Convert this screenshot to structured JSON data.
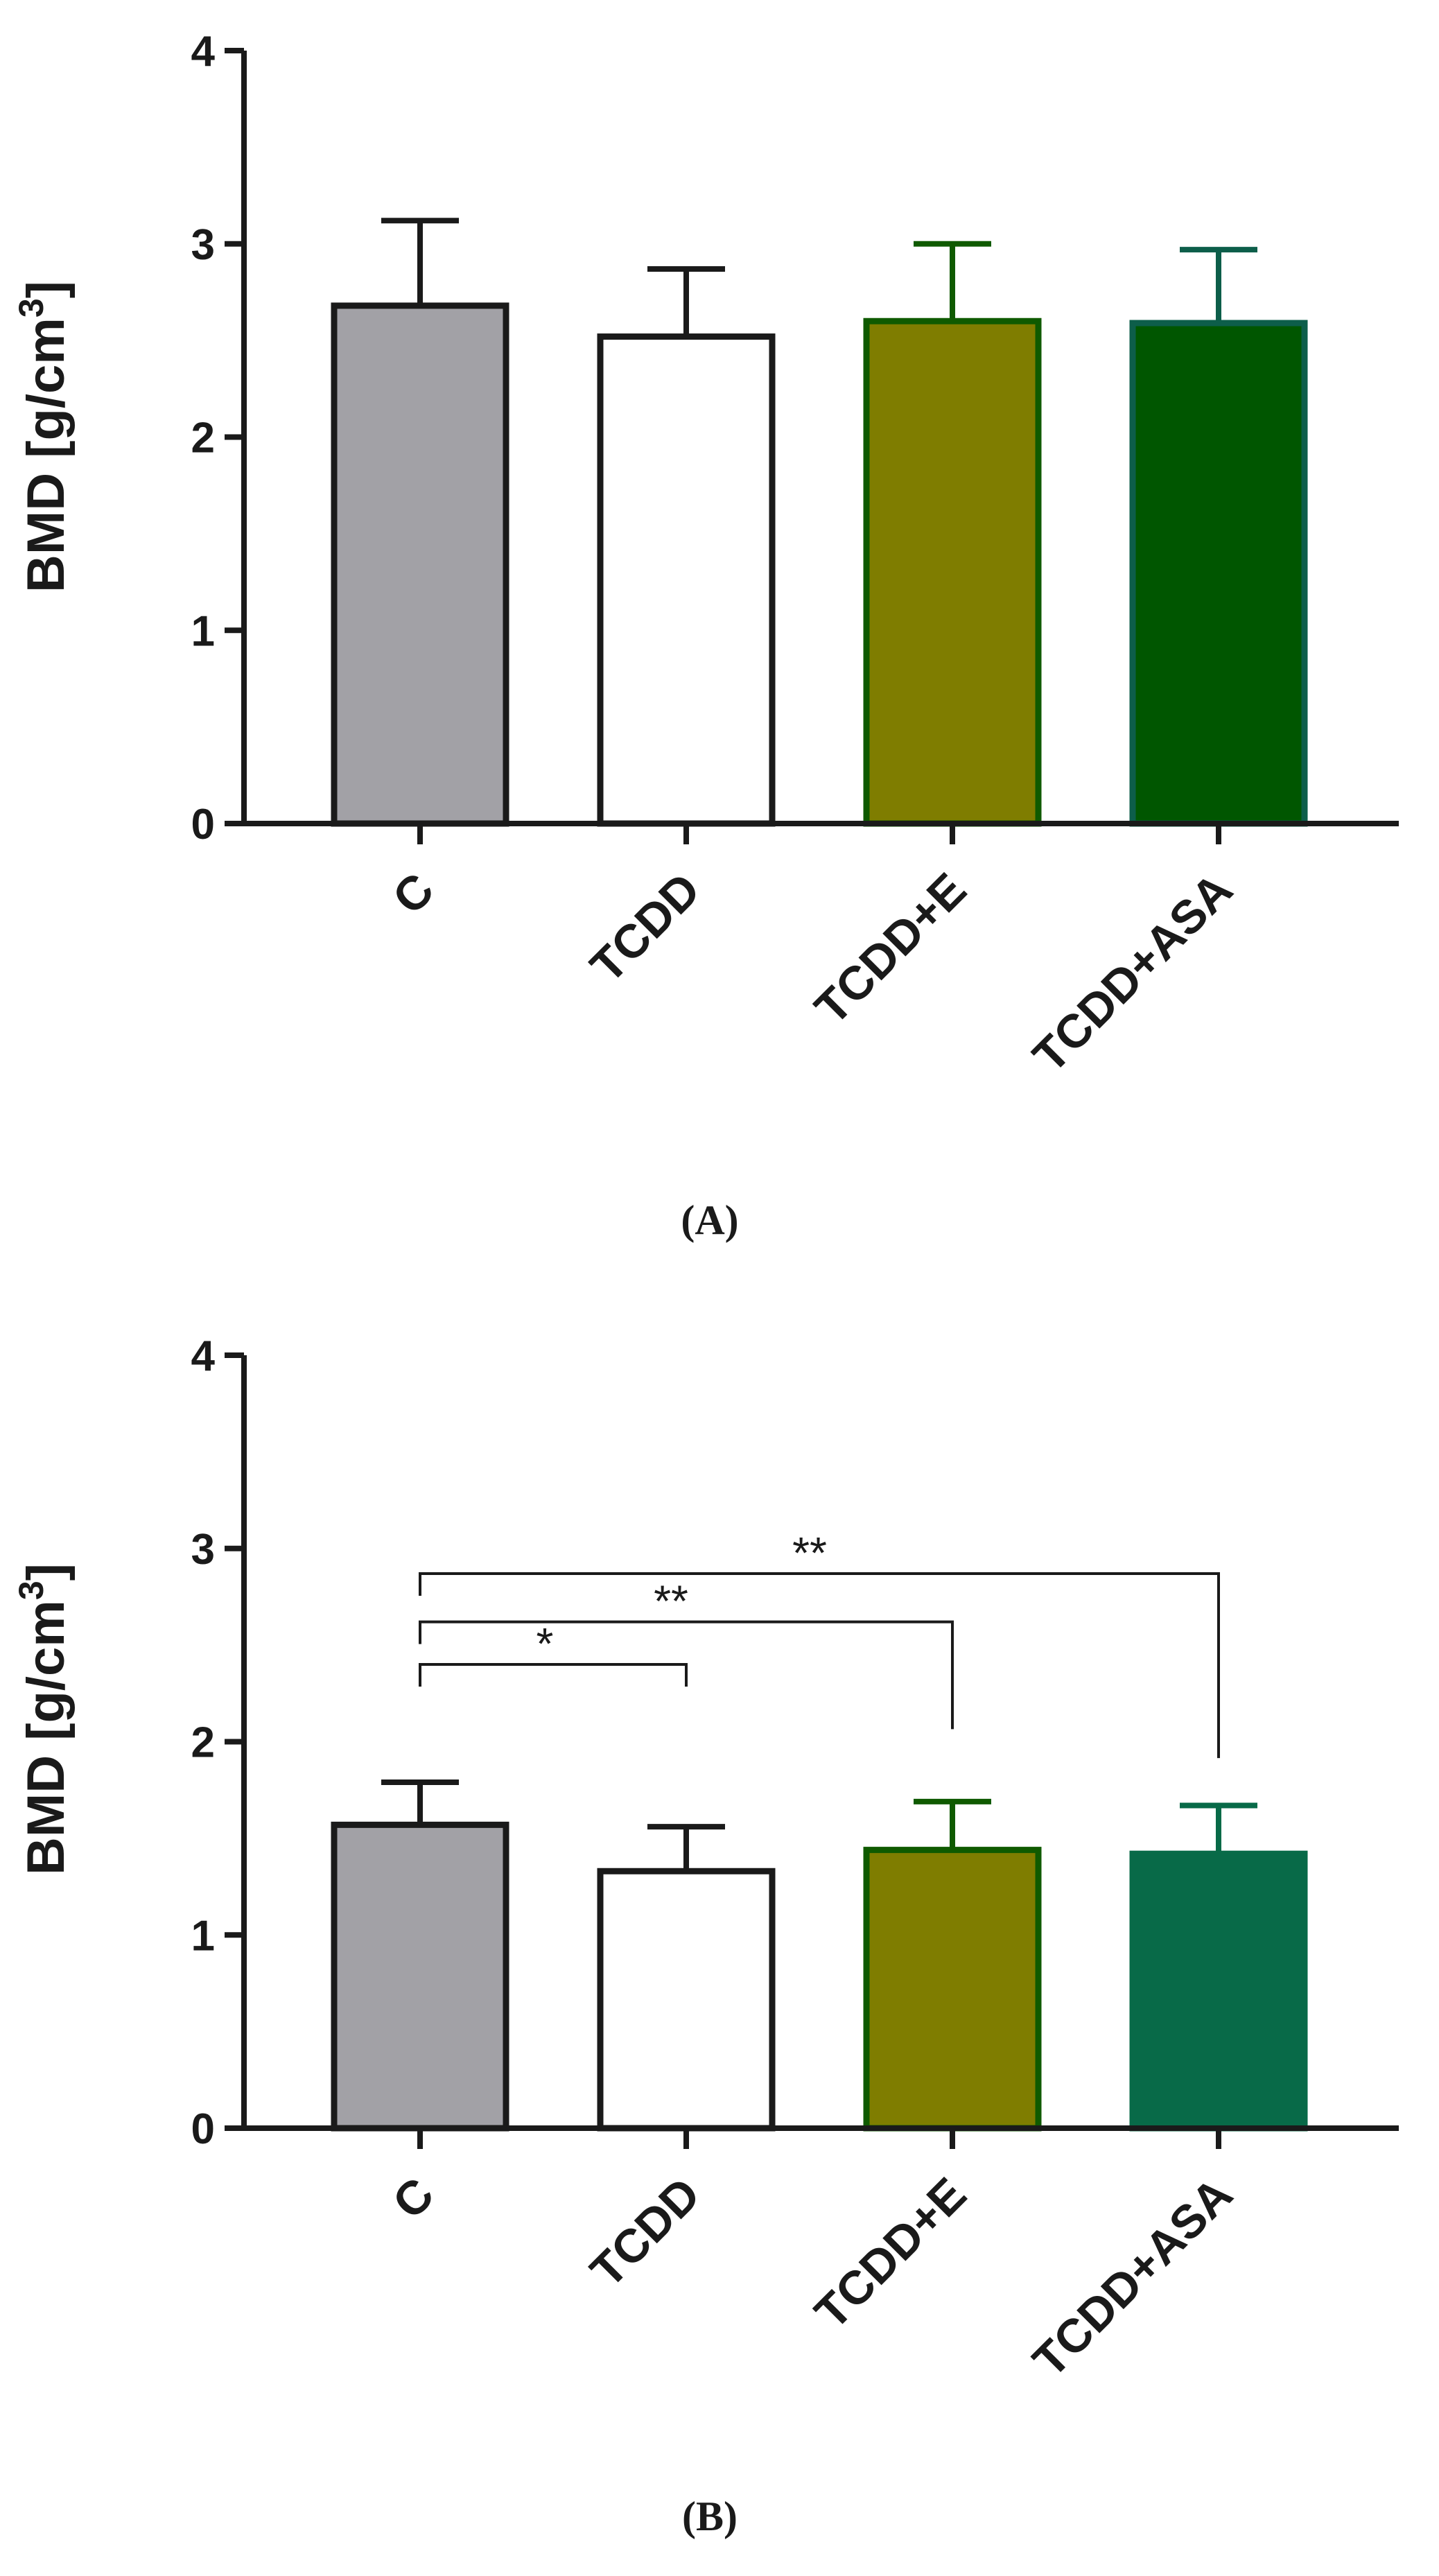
{
  "figure": {
    "panels": [
      "(A)",
      "(B)"
    ]
  },
  "chart_data": [
    {
      "type": "bar",
      "panel_label": "(A)",
      "ylabel": "BMD [g/cm3]",
      "ylabel_main": "BMD [g/cm",
      "ylabel_sup": "3",
      "ylabel_end": "]",
      "ylim": [
        0,
        4
      ],
      "yticks": [
        0,
        1,
        2,
        3,
        4
      ],
      "categories": [
        "C",
        "TCDD",
        "TCDD+E",
        "TCDD+ASA"
      ],
      "values": [
        2.68,
        2.52,
        2.6,
        2.59
      ],
      "errors": [
        0.44,
        0.35,
        0.4,
        0.38
      ],
      "fill_colors": [
        "#a2a1a6",
        "#ffffff",
        "#7f7d00",
        "#005600"
      ],
      "edge_colors": [
        "#1a1a1a",
        "#1a1a1a",
        "#0f5a00",
        "#0d5e4a"
      ],
      "significance": []
    },
    {
      "type": "bar",
      "panel_label": "(B)",
      "ylabel": "BMD [g/cm3]",
      "ylabel_main": "BMD [g/cm",
      "ylabel_sup": "3",
      "ylabel_end": "]",
      "ylim": [
        0,
        4
      ],
      "yticks": [
        0,
        1,
        2,
        3,
        4
      ],
      "categories": [
        "C",
        "TCDD",
        "TCDD+E",
        "TCDD+ASA"
      ],
      "values": [
        1.57,
        1.33,
        1.44,
        1.42
      ],
      "errors": [
        0.22,
        0.23,
        0.25,
        0.25
      ],
      "fill_colors": [
        "#a2a1a6",
        "#ffffff",
        "#7f7d00",
        "#086a48"
      ],
      "edge_colors": [
        "#1a1a1a",
        "#1a1a1a",
        "#0f5a00",
        "#086a48"
      ],
      "significance": [
        {
          "from": 0,
          "to": 1,
          "label": "*",
          "y": 2.4,
          "drop_to": 2.4
        },
        {
          "from": 0,
          "to": 2,
          "label": "**",
          "y": 2.62,
          "drop_to": 2.18
        },
        {
          "from": 0,
          "to": 3,
          "label": "**",
          "y": 2.87,
          "drop_to": 2.03
        }
      ]
    }
  ]
}
